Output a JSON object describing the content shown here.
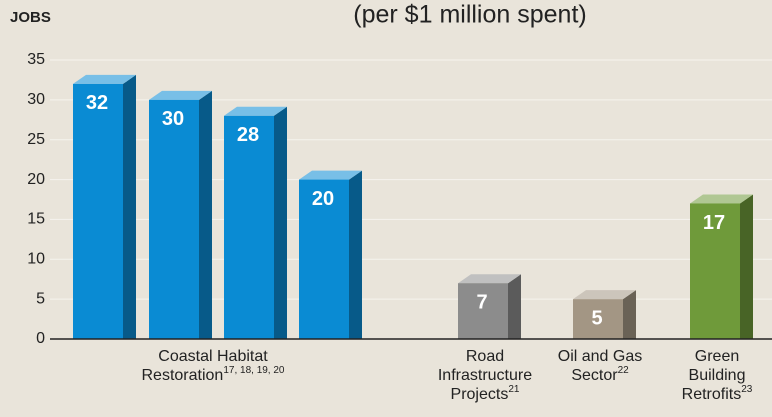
{
  "chart_data": {
    "type": "bar",
    "title": "(per $1 million spent)",
    "y_label": "JOBS",
    "ylim": [
      0,
      35
    ],
    "yticks": [
      0,
      5,
      10,
      15,
      20,
      25,
      30,
      35
    ],
    "grid": true,
    "groups": [
      {
        "label": [
          "Coastal Habitat",
          "Restoration"
        ],
        "note": "17, 18, 19, 20",
        "color": "#0a8bd3",
        "values": [
          32,
          30,
          28,
          20
        ]
      },
      {
        "label": [
          "Road",
          "Infrastructure",
          "Projects"
        ],
        "note": "21",
        "color": "#8c8c8c",
        "values": [
          7
        ]
      },
      {
        "label": [
          "Oil and Gas",
          "Sector"
        ],
        "note": "22",
        "color": "#a39684",
        "values": [
          5
        ]
      },
      {
        "label": [
          "Green",
          "Building",
          "Retrofits"
        ],
        "note": "23",
        "color": "#6f9a3a",
        "values": [
          17
        ]
      }
    ]
  }
}
